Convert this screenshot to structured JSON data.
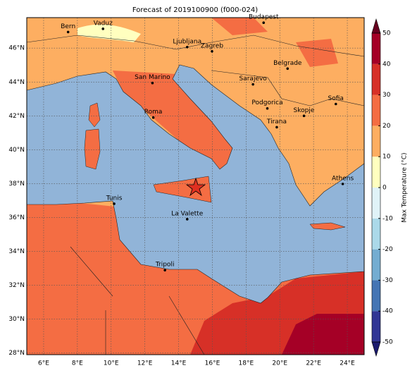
{
  "chart_data": {
    "type": "map",
    "title": "Forecast of 2019100900 (f000-024)",
    "xlim": [
      5,
      25
    ],
    "ylim": [
      27.9,
      47.8
    ],
    "xticks": [
      {
        "value": 6,
        "label": "6°E"
      },
      {
        "value": 8,
        "label": "8°E"
      },
      {
        "value": 10,
        "label": "10°E"
      },
      {
        "value": 12,
        "label": "12°E"
      },
      {
        "value": 14,
        "label": "14°E"
      },
      {
        "value": 16,
        "label": "16°E"
      },
      {
        "value": 18,
        "label": "18°E"
      },
      {
        "value": 20,
        "label": "20°E"
      },
      {
        "value": 22,
        "label": "22°E"
      },
      {
        "value": 24,
        "label": "24°E"
      }
    ],
    "yticks": [
      {
        "value": 28,
        "label": "28°N"
      },
      {
        "value": 30,
        "label": "30°N"
      },
      {
        "value": 32,
        "label": "32°N"
      },
      {
        "value": 34,
        "label": "34°N"
      },
      {
        "value": 36,
        "label": "36°N"
      },
      {
        "value": 38,
        "label": "38°N"
      },
      {
        "value": 40,
        "label": "40°N"
      },
      {
        "value": 42,
        "label": "42°N"
      },
      {
        "value": 44,
        "label": "44°N"
      },
      {
        "value": 46,
        "label": "46°N"
      }
    ],
    "grid": true,
    "cities": [
      {
        "name": "Bern",
        "lon": 7.45,
        "lat": 46.95
      },
      {
        "name": "Vaduz",
        "lon": 9.52,
        "lat": 47.14
      },
      {
        "name": "Budapest",
        "lon": 19.04,
        "lat": 47.5
      },
      {
        "name": "Ljubljana",
        "lon": 14.51,
        "lat": 46.06
      },
      {
        "name": "Zagreb",
        "lon": 15.98,
        "lat": 45.81
      },
      {
        "name": "Belgrade",
        "lon": 20.46,
        "lat": 44.79
      },
      {
        "name": "Sarajevo",
        "lon": 18.41,
        "lat": 43.86
      },
      {
        "name": "San Marino",
        "lon": 12.45,
        "lat": 43.94
      },
      {
        "name": "Sofia",
        "lon": 23.32,
        "lat": 42.7
      },
      {
        "name": "Podgorica",
        "lon": 19.26,
        "lat": 42.44
      },
      {
        "name": "Skopje",
        "lon": 21.43,
        "lat": 42.0
      },
      {
        "name": "Roma",
        "lon": 12.5,
        "lat": 41.9
      },
      {
        "name": "Tirana",
        "lon": 19.82,
        "lat": 41.33
      },
      {
        "name": "Athens",
        "lon": 23.73,
        "lat": 37.98
      },
      {
        "name": "Tunis",
        "lon": 10.18,
        "lat": 36.81
      },
      {
        "name": "La Valette",
        "lon": 14.51,
        "lat": 35.9
      },
      {
        "name": "Tripoli",
        "lon": 13.19,
        "lat": 32.89
      }
    ],
    "colorbar": {
      "label": "Max Temperature (°C)",
      "ticks": [
        -50,
        -40,
        -30,
        -20,
        -10,
        0,
        10,
        20,
        30,
        40,
        50
      ],
      "colors": [
        "#313695",
        "#4575b4",
        "#74add1",
        "#abd9e9",
        "#e0f3f8",
        "#ffffbf",
        "#fdae61",
        "#f46d43",
        "#d73027",
        "#a50026"
      ],
      "under": "#1a1a6e",
      "over": "#67001f"
    }
  }
}
